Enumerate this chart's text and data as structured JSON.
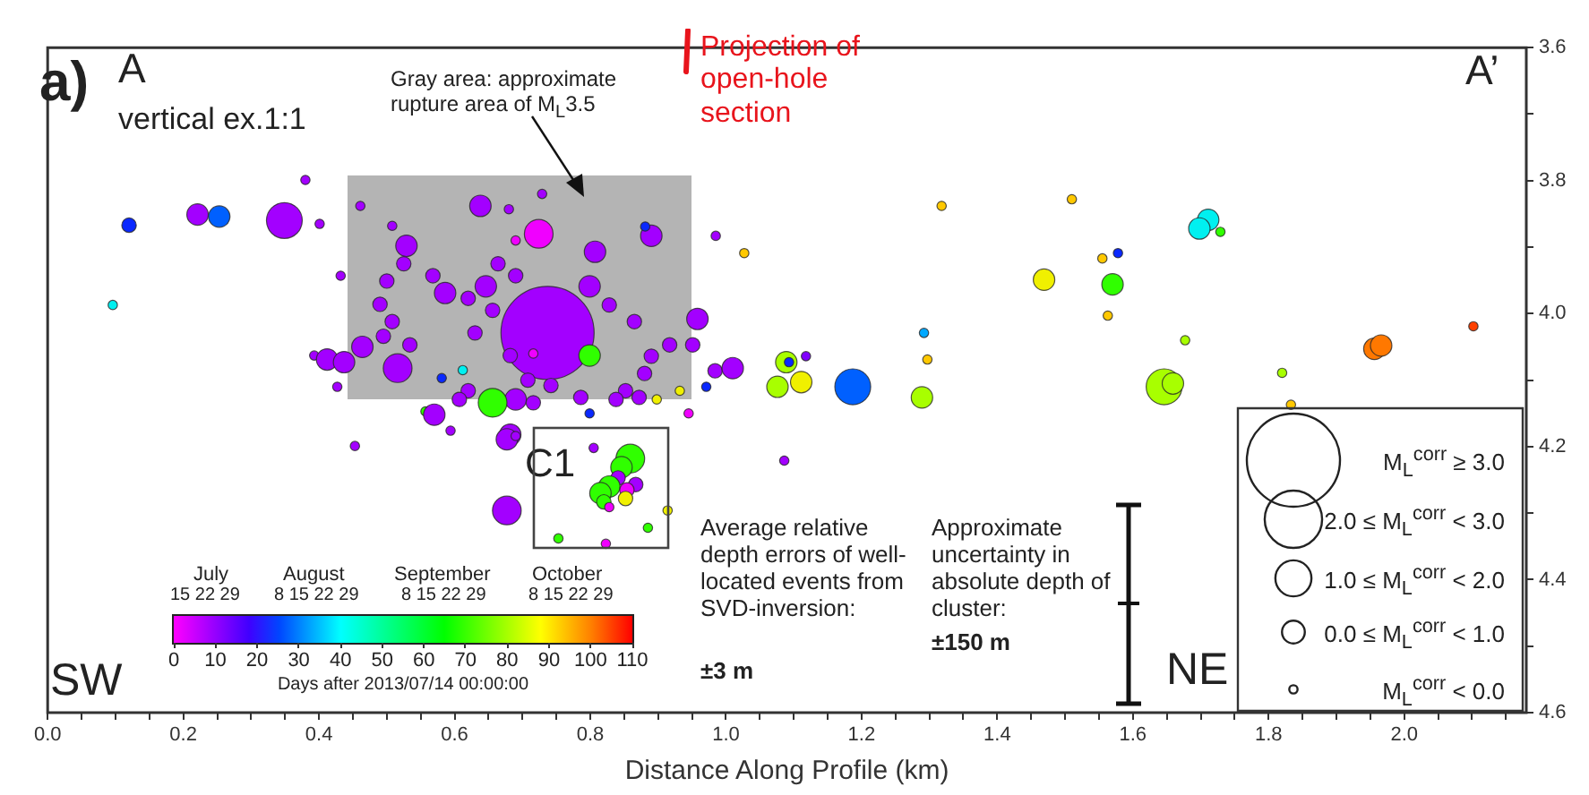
{
  "chart_data": {
    "type": "bubble",
    "xlabel": "Distance Along Profile (km)",
    "xlim": [
      0,
      2.18
    ],
    "ylim": [
      4.6,
      3.6
    ],
    "xticks": [
      {
        "value": 0,
        "label": "0.0"
      },
      {
        "value": 0.05,
        "label": null
      },
      {
        "value": 0.1,
        "label": null
      },
      {
        "value": 0.15,
        "label": null
      },
      {
        "value": 0.2,
        "label": "0.2"
      },
      {
        "value": 0.25,
        "label": null
      },
      {
        "value": 0.3,
        "label": null
      },
      {
        "value": 0.35,
        "label": null
      },
      {
        "value": 0.4,
        "label": "0.4"
      },
      {
        "value": 0.45,
        "label": null
      },
      {
        "value": 0.5,
        "label": null
      },
      {
        "value": 0.55,
        "label": null
      },
      {
        "value": 0.6,
        "label": "0.6"
      },
      {
        "value": 0.65,
        "label": null
      },
      {
        "value": 0.7,
        "label": null
      },
      {
        "value": 0.75,
        "label": null
      },
      {
        "value": 0.8,
        "label": "0.8"
      },
      {
        "value": 0.85,
        "label": null
      },
      {
        "value": 0.9,
        "label": null
      },
      {
        "value": 0.95,
        "label": null
      },
      {
        "value": 1,
        "label": "1.0"
      },
      {
        "value": 1.05,
        "label": null
      },
      {
        "value": 1.1,
        "label": null
      },
      {
        "value": 1.15,
        "label": null
      },
      {
        "value": 1.2,
        "label": "1.2"
      },
      {
        "value": 1.25,
        "label": null
      },
      {
        "value": 1.3,
        "label": null
      },
      {
        "value": 1.35,
        "label": null
      },
      {
        "value": 1.4,
        "label": "1.4"
      },
      {
        "value": 1.45,
        "label": null
      },
      {
        "value": 1.5,
        "label": null
      },
      {
        "value": 1.55,
        "label": null
      },
      {
        "value": 1.6,
        "label": "1.6"
      },
      {
        "value": 1.65,
        "label": null
      },
      {
        "value": 1.7,
        "label": null
      },
      {
        "value": 1.75,
        "label": null
      },
      {
        "value": 1.8,
        "label": "1.8"
      },
      {
        "value": 1.85,
        "label": null
      },
      {
        "value": 1.9,
        "label": null
      },
      {
        "value": 1.95,
        "label": null
      },
      {
        "value": 2,
        "label": "2.0"
      },
      {
        "value": 2.05,
        "label": null
      },
      {
        "value": 2.1,
        "label": null
      },
      {
        "value": 2.15,
        "label": null
      }
    ],
    "yticks": [
      3.6,
      {
        "value": 3.7,
        "label": null
      },
      3.8,
      {
        "value": 3.9,
        "label": null
      },
      {
        "value": 4,
        "label": "4.0"
      },
      {
        "value": 4.1,
        "label": null
      },
      4.2,
      {
        "value": 4.3,
        "label": null
      },
      4.4,
      {
        "value": 4.5,
        "label": null
      },
      4.6
    ],
    "grid": false,
    "legend": false,
    "size_legend": [
      {
        "value": 1,
        "label": "M$_{L}$$^{corr}$ ≥ 3.0"
      },
      {
        "value": 0.38,
        "label": "2.0 ≤ M$_{L}$$^{corr}$ < 3.0"
      },
      {
        "value": 0.15,
        "label": "1.0 ≤ M$_{L}$$^{corr}$ < 2.0"
      },
      {
        "value": 0.06,
        "label": "0.0 ≤ M$_{L}$$^{corr}$ < 1.0"
      },
      {
        "value": 0.008,
        "label": "M$_{L}$$^{corr}$ < 0.0"
      }
    ],
    "series": [
      {
        "x": [
          0.737,
          0.38,
          0.12,
          0.221,
          0.253,
          0.349,
          0.401,
          0.461,
          0.096,
          0.432,
          0.393,
          0.412,
          0.437,
          0.464,
          0.427,
          0.729,
          0.638,
          0.68,
          0.724,
          0.807,
          0.89,
          0.881,
          0.985,
          1.027,
          0.508,
          0.529,
          0.525,
          0.5,
          0.49,
          0.508,
          0.495,
          0.516,
          0.534,
          0.568,
          0.586,
          0.62,
          0.646,
          0.664,
          0.69,
          0.63,
          0.656,
          0.682,
          0.708,
          0.742,
          0.799,
          0.828,
          0.865,
          0.958,
          0.917,
          0.89,
          0.951,
          0.984,
          1.01,
          0.88,
          0.62,
          0.69,
          0.716,
          0.607,
          0.872,
          0.786,
          0.852,
          0.838,
          0.716,
          0.69,
          0.799,
          0.612,
          0.581,
          0.656,
          0.557,
          0.799,
          0.898,
          0.932,
          0.945,
          0.971,
          1.089,
          1.093,
          1.111,
          1.076,
          1.118,
          0.57,
          0.594,
          0.682,
          1.318,
          1.51,
          1.711,
          1.698,
          1.729,
          1.555,
          1.578,
          1.469,
          1.57,
          1.563,
          1.292,
          1.297,
          1.187,
          1.289,
          1.677,
          1.646,
          1.659,
          1.82,
          1.833,
          1.956,
          1.966,
          2.102,
          0.453,
          0.677,
          0.69,
          0.677,
          1.086,
          0.805,
          0.859,
          0.846,
          0.841,
          0.828,
          0.815,
          0.82,
          0.867,
          0.854,
          0.852,
          0.828,
          0.914,
          0.885,
          0.753,
          0.823
        ],
        "values": [
          4.029,
          3.799,
          3.867,
          3.851,
          3.854,
          3.86,
          3.865,
          3.838,
          3.987,
          3.943,
          4.063,
          4.069,
          4.073,
          4.05,
          4.11,
          3.82,
          3.838,
          3.843,
          3.88,
          3.907,
          3.883,
          3.869,
          3.883,
          3.909,
          3.868,
          3.898,
          3.925,
          3.951,
          3.986,
          4.012,
          4.034,
          4.082,
          4.047,
          3.943,
          3.969,
          3.977,
          3.959,
          3.925,
          3.943,
          4.029,
          3.995,
          4.063,
          4.1,
          4.108,
          3.959,
          3.987,
          4.012,
          4.008,
          4.047,
          4.064,
          4.047,
          4.086,
          4.082,
          4.09,
          4.116,
          4.129,
          4.134,
          4.129,
          4.126,
          4.126,
          4.116,
          4.129,
          4.06,
          3.89,
          4.063,
          4.085,
          4.097,
          4.134,
          4.147,
          4.15,
          4.129,
          4.116,
          4.15,
          4.11,
          4.073,
          4.073,
          4.103,
          4.11,
          4.064,
          4.152,
          4.176,
          4.182,
          3.838,
          3.828,
          3.859,
          3.872,
          3.877,
          3.917,
          3.909,
          3.949,
          3.956,
          4.003,
          4.029,
          4.069,
          4.11,
          4.126,
          4.04,
          4.11,
          4.105,
          4.089,
          4.137,
          4.053,
          4.048,
          4.019,
          4.199,
          4.189,
          4.184,
          4.296,
          4.221,
          4.202,
          4.218,
          4.231,
          4.247,
          4.26,
          4.27,
          4.283,
          4.257,
          4.265,
          4.278,
          4.291,
          4.296,
          4.322,
          4.338,
          4.346
        ],
        "sizes": [
          1,
          0.01,
          0.024,
          0.053,
          0.053,
          0.148,
          0.01,
          0.01,
          0.01,
          0.01,
          0.01,
          0.053,
          0.053,
          0.053,
          0.01,
          0.01,
          0.053,
          0.01,
          0.095,
          0.053,
          0.053,
          0.01,
          0.01,
          0.01,
          0.01,
          0.053,
          0.024,
          0.024,
          0.024,
          0.024,
          0.024,
          0.095,
          0.024,
          0.024,
          0.053,
          0.024,
          0.053,
          0.024,
          0.024,
          0.024,
          0.024,
          0.024,
          0.024,
          0.024,
          0.053,
          0.024,
          0.024,
          0.053,
          0.024,
          0.024,
          0.024,
          0.024,
          0.053,
          0.024,
          0.024,
          0.053,
          0.024,
          0.024,
          0.024,
          0.024,
          0.024,
          0.024,
          0.01,
          0.01,
          0.053,
          0.01,
          0.01,
          0.095,
          0.01,
          0.01,
          0.01,
          0.01,
          0.01,
          0.01,
          0.053,
          0.01,
          0.053,
          0.053,
          0.01,
          0.053,
          0.01,
          0.053,
          0.01,
          0.01,
          0.053,
          0.053,
          0.01,
          0.01,
          0.01,
          0.053,
          0.053,
          0.01,
          0.01,
          0.01,
          0.148,
          0.053,
          0.01,
          0.148,
          0.053,
          0.01,
          0.01,
          0.053,
          0.053,
          0.01,
          0.01,
          0.053,
          0.01,
          0.095,
          0.01,
          0.01,
          0.095,
          0.053,
          0.024,
          0.053,
          0.053,
          0.024,
          0.024,
          0.024,
          0.024,
          0.01,
          0.01,
          0.01,
          0.01,
          0.01
        ],
        "colors": [
          "#a300ff",
          "#a300ff",
          "#0a28ff",
          "#a300ff",
          "#0060ff",
          "#a300ff",
          "#a300ff",
          "#a300ff",
          "#00f0f0",
          "#a300ff",
          "#a300ff",
          "#a300ff",
          "#a300ff",
          "#a300ff",
          "#a300ff",
          "#a300ff",
          "#a300ff",
          "#a300ff",
          "#f000ff",
          "#a300ff",
          "#a300ff",
          "#0a28ff",
          "#a300ff",
          "#ffc800",
          "#a300ff",
          "#a300ff",
          "#a300ff",
          "#a300ff",
          "#a300ff",
          "#a300ff",
          "#a300ff",
          "#a300ff",
          "#a300ff",
          "#a300ff",
          "#a300ff",
          "#a300ff",
          "#a300ff",
          "#a300ff",
          "#a300ff",
          "#a300ff",
          "#a300ff",
          "#a300ff",
          "#a300ff",
          "#a300ff",
          "#a300ff",
          "#a300ff",
          "#a300ff",
          "#a300ff",
          "#a300ff",
          "#a300ff",
          "#a300ff",
          "#a300ff",
          "#a300ff",
          "#a300ff",
          "#a300ff",
          "#a300ff",
          "#a300ff",
          "#a300ff",
          "#a300ff",
          "#a300ff",
          "#a300ff",
          "#a300ff",
          "#f000ff",
          "#f000ff",
          "#30ff00",
          "#00f0f0",
          "#0a28ff",
          "#30ff00",
          "#30ff00",
          "#0a28ff",
          "#f0f000",
          "#f0f000",
          "#f000ff",
          "#0a28ff",
          "#a8ff00",
          "#0a28ff",
          "#f0f000",
          "#a8ff00",
          "#8000ff",
          "#a300ff",
          "#a300ff",
          "#a300ff",
          "#ffc800",
          "#ffc800",
          "#00f0f0",
          "#00f0f0",
          "#30ff00",
          "#ffc800",
          "#0a28ff",
          "#f0f000",
          "#30ff00",
          "#ffc800",
          "#00a8ff",
          "#ffc800",
          "#0060ff",
          "#a8ff00",
          "#a8ff00",
          "#a8ff00",
          "#a8ff00",
          "#a8ff00",
          "#ffc800",
          "#ff7800",
          "#ff7800",
          "#ff4000",
          "#a300ff",
          "#a300ff",
          "#a300ff",
          "#a300ff",
          "#a300ff",
          "#a300ff",
          "#30ff00",
          "#30ff00",
          "#a300ff",
          "#30ff00",
          "#30ff00",
          "#30ff00",
          "#a300ff",
          "#f000ff",
          "#f0f000",
          "#f000ff",
          "#f0f000",
          "#30ff00",
          "#30ff00",
          "#f000ff"
        ]
      }
    ],
    "annotations": [
      "a)",
      "A",
      "vertical ex.1:1",
      "A’",
      "Gray area: approximate rupture area of M$_{L}$3.5",
      "Projection of open-hole section",
      "C1",
      "Average relative depth errors of well-located events from SVD-inversion:",
      "±3 m",
      "Approximate uncertainty in absolute depth of cluster:",
      "±150 m",
      "SW",
      "NE",
      "July",
      "August",
      "September",
      "October",
      "15 22 29",
      "8 15 22 29",
      "8 15 22 29",
      "8 15 22 29",
      "0",
      "10",
      "20",
      "30",
      "40",
      "50",
      "60",
      "70",
      "80",
      "90",
      "100",
      "110",
      "Days after 2013/07/14 00:00:00"
    ]
  }
}
